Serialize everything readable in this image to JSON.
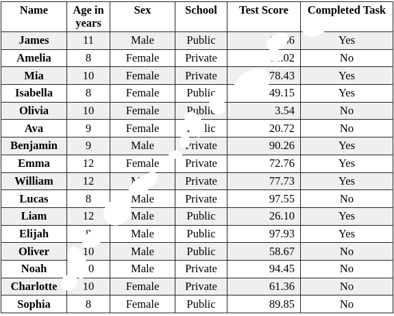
{
  "table": {
    "headers": [
      {
        "key": "name",
        "label": "Name"
      },
      {
        "key": "age",
        "label": "Age in years"
      },
      {
        "key": "sex",
        "label": "Sex"
      },
      {
        "key": "school",
        "label": "School"
      },
      {
        "key": "score",
        "label": "Test Score"
      },
      {
        "key": "task",
        "label": "Completed Task"
      }
    ],
    "rows": [
      {
        "name": "James",
        "age": "11",
        "sex": "Male",
        "school": "Public",
        "score": "65.56",
        "task": "Yes"
      },
      {
        "name": "Amelia",
        "age": "8",
        "sex": "Female",
        "school": "Private",
        "score": "11.02",
        "task": "No"
      },
      {
        "name": "Mia",
        "age": "10",
        "sex": "Female",
        "school": "Private",
        "score": "78.43",
        "task": "Yes"
      },
      {
        "name": "Isabella",
        "age": "8",
        "sex": "Female",
        "school": "Public",
        "score": "49.15",
        "task": "Yes"
      },
      {
        "name": "Olivia",
        "age": "10",
        "sex": "Female",
        "school": "Public",
        "score": "3.54",
        "task": "No"
      },
      {
        "name": "Ava",
        "age": "9",
        "sex": "Female",
        "school": "Public",
        "score": "20.72",
        "task": "No"
      },
      {
        "name": "Benjamin",
        "age": "9",
        "sex": "Male",
        "school": "Private",
        "score": "90.26",
        "task": "Yes"
      },
      {
        "name": "Emma",
        "age": "12",
        "sex": "Female",
        "school": "Private",
        "score": "72.76",
        "task": "Yes"
      },
      {
        "name": "William",
        "age": "12",
        "sex": "Male",
        "school": "Private",
        "score": "77.73",
        "task": "Yes"
      },
      {
        "name": "Lucas",
        "age": "8",
        "sex": "Male",
        "school": "Private",
        "score": "97.55",
        "task": "No"
      },
      {
        "name": "Liam",
        "age": "12",
        "sex": "Male",
        "school": "Public",
        "score": "26.10",
        "task": "Yes"
      },
      {
        "name": "Elijah",
        "age": "8",
        "sex": "Male",
        "school": "Public",
        "score": "97.93",
        "task": "Yes"
      },
      {
        "name": "Oliver",
        "age": "10",
        "sex": "Male",
        "school": "Public",
        "score": "58.67",
        "task": "No"
      },
      {
        "name": "Noah",
        "age": "10",
        "sex": "Male",
        "school": "Private",
        "score": "94.45",
        "task": "No"
      },
      {
        "name": "Charlotte",
        "age": "10",
        "sex": "Female",
        "school": "Private",
        "score": "61.36",
        "task": "No"
      },
      {
        "name": "Sophia",
        "age": "8",
        "sex": "Female",
        "school": "Public",
        "score": "89.85",
        "task": "No"
      }
    ]
  },
  "colors": {
    "shaded_row": "#efefef",
    "border": "#222222",
    "overlay_marks": "#ffffff"
  }
}
